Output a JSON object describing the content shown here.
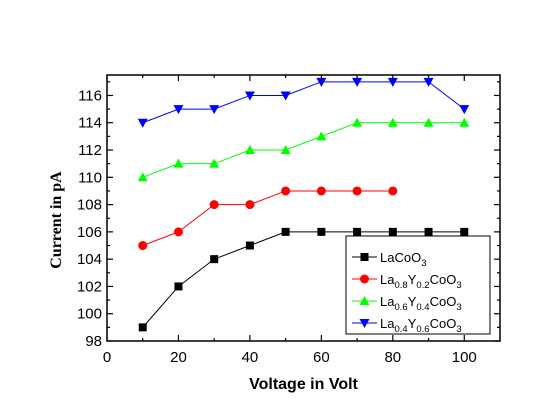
{
  "chart_data": {
    "type": "line",
    "title": "",
    "xlabel": "Voltage in Volt",
    "ylabel": "Current in pA",
    "xlim": [
      0,
      110
    ],
    "ylim": [
      98,
      117.5
    ],
    "xticks": [
      0,
      20,
      40,
      60,
      80,
      100
    ],
    "yticks": [
      98,
      100,
      102,
      104,
      106,
      108,
      110,
      112,
      114,
      116
    ],
    "grid": false,
    "legend_position": "bottom-right",
    "series": [
      {
        "name": "LaCoO3",
        "legend": [
          {
            "t": "LaCoO"
          },
          {
            "t": "3",
            "sub": true
          }
        ],
        "color": "#000000",
        "marker": "square",
        "x": [
          10,
          20,
          30,
          40,
          50,
          60,
          70,
          80,
          90,
          100
        ],
        "y": [
          99,
          102,
          104,
          105,
          106,
          106,
          106,
          106,
          106,
          106
        ]
      },
      {
        "name": "La0.8Y0.2CoO3",
        "legend": [
          {
            "t": "La"
          },
          {
            "t": "0.8",
            "sub": true
          },
          {
            "t": "Y"
          },
          {
            "t": "0.2",
            "sub": true
          },
          {
            "t": "CoO"
          },
          {
            "t": "3",
            "sub": true
          }
        ],
        "color": "#ff0000",
        "marker": "circle",
        "x": [
          10,
          20,
          30,
          40,
          50,
          60,
          70,
          80
        ],
        "y": [
          105,
          106,
          108,
          108,
          109,
          109,
          109,
          109
        ]
      },
      {
        "name": "La0.6Y0.4CoO3",
        "legend": [
          {
            "t": "La"
          },
          {
            "t": "0.6",
            "sub": true
          },
          {
            "t": "Y"
          },
          {
            "t": "0.4",
            "sub": true
          },
          {
            "t": "CoO"
          },
          {
            "t": "3",
            "sub": true
          }
        ],
        "color": "#00ff00",
        "marker": "triangle-up",
        "x": [
          10,
          20,
          30,
          40,
          50,
          60,
          70,
          80,
          90,
          100
        ],
        "y": [
          110,
          111,
          111,
          112,
          112,
          113,
          114,
          114,
          114,
          114
        ]
      },
      {
        "name": "La0.4Y0.6CoO3",
        "legend": [
          {
            "t": "La"
          },
          {
            "t": "0.4",
            "sub": true
          },
          {
            "t": "Y"
          },
          {
            "t": "0.6",
            "sub": true
          },
          {
            "t": "CoO"
          },
          {
            "t": "3",
            "sub": true
          }
        ],
        "color": "#0000ff",
        "marker": "triangle-down",
        "x": [
          10,
          20,
          30,
          40,
          50,
          60,
          70,
          80,
          90,
          100
        ],
        "y": [
          114,
          115,
          115,
          116,
          116,
          117,
          117,
          117,
          117,
          115
        ]
      }
    ]
  }
}
